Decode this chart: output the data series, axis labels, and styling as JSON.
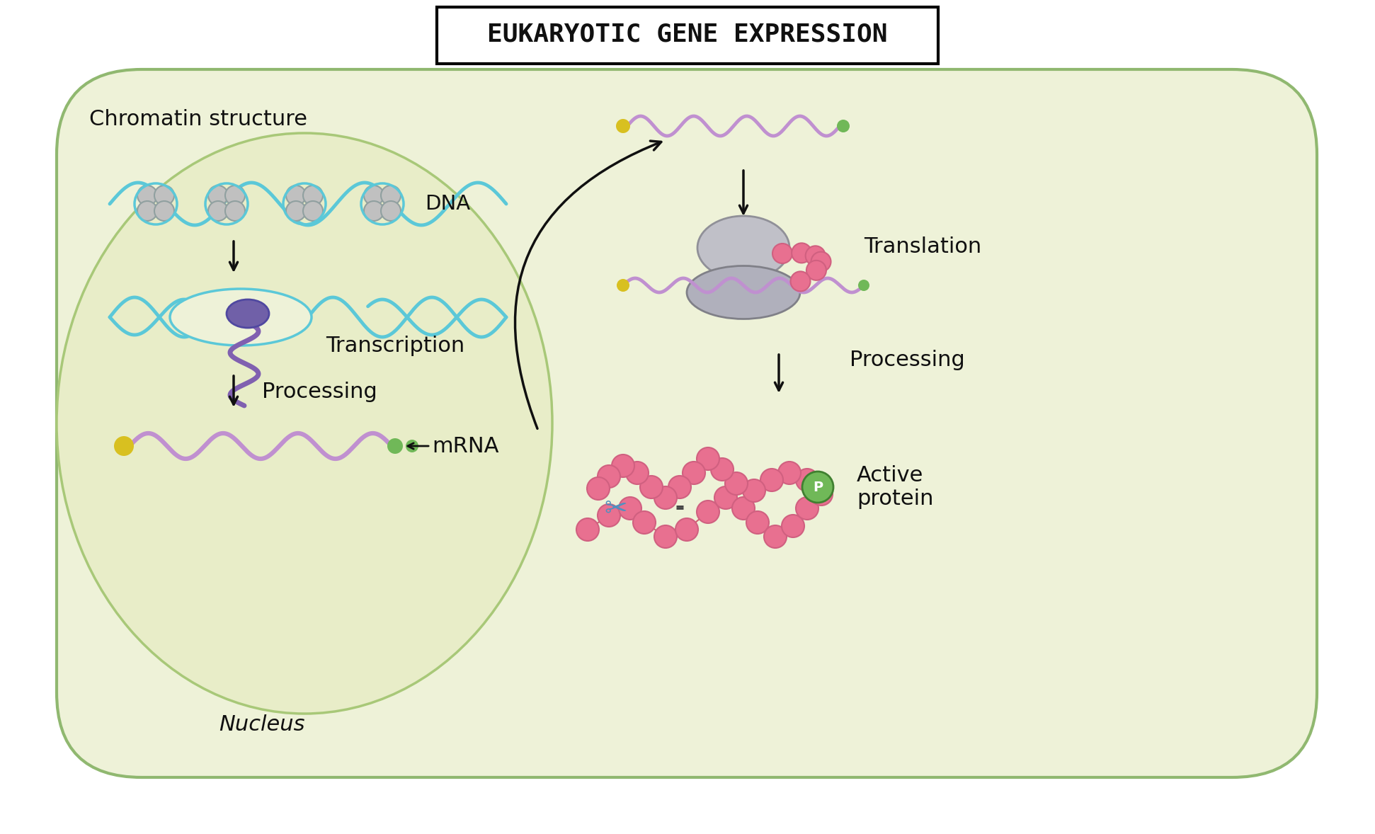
{
  "title": "EUKARYOTIC GENE EXPRESSION",
  "bg_color": "#f5f7e8",
  "cell_color": "#eef2d8",
  "nucleus_color": "#e8edc8",
  "cell_border_color": "#90b870",
  "nucleus_border_color": "#a8c878",
  "dna_color": "#5bc8d8",
  "mrna_color": "#c090d0",
  "histone_color": "#c0c0c0",
  "histone_border": "#90a0a0",
  "ribosome_color": "#b0b0c0",
  "protein_color": "#e87090",
  "cap_color": "#d8c020",
  "tail_color": "#70b858",
  "arrow_color": "#101010",
  "text_color": "#101010",
  "label_chromatin": "Chromatin structure",
  "label_dna": "DNA",
  "label_transcription": "Transcription",
  "label_processing": "Processing",
  "label_mrna": "mRNA",
  "label_translation": "Translation",
  "label_active_protein": "Active\nprotein",
  "label_nucleus": "Nucleus"
}
